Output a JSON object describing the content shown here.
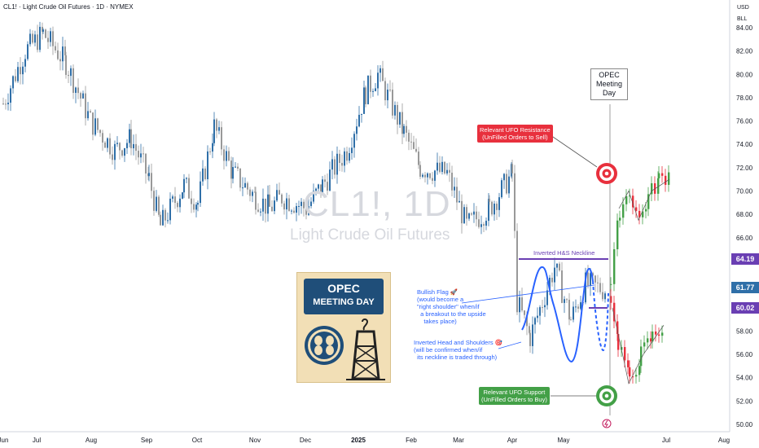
{
  "header": {
    "symbol": "CL1!",
    "title": "Light Crude Oil Futures",
    "interval": "1D",
    "exchange": "NYMEX",
    "full": "CL1! · Light Crude Oil Futures · 1D · NYMEX"
  },
  "axis_top": {
    "currency": "USD",
    "scale": "BLL"
  },
  "watermark": {
    "big": "CL1!, 1D",
    "small": "Light Crude Oil Futures"
  },
  "price_labels": {
    "upper": "64.19",
    "current": "61.77",
    "lower": "60.02"
  },
  "colors": {
    "up": "#2f6fa8",
    "down": "#999999",
    "neckline": "#6a3fb3",
    "resistance": "#e8303d",
    "support": "#43a047",
    "annotation": "#2962ff"
  },
  "annotations": {
    "neckline_label": "Inverted H&S Neckline",
    "opec_day": [
      "OPEC",
      "Meeting",
      "Day"
    ],
    "resistance": [
      "Relevant UFO Resistance",
      "(UnFilled Orders to Sell)"
    ],
    "support": [
      "Relevant UFO Support",
      "(UnFilled Orders to Buy)"
    ],
    "bullish_flag": "Bullish Flag 🚀\n(would become a\n\"right shoulder\" when/if\n  a breakout to the upside\n    takes place)",
    "inverted_hs": "Inverted Head and Shoulders 🎯\n(will be confirmed when/if\n  its neckline is traded through)",
    "poster": [
      "OPEC",
      "MEETING DAY"
    ]
  },
  "chart_data": {
    "type": "candlestick",
    "title": "CL1! · Light Crude Oil Futures · 1D · NYMEX",
    "x_ticks": [
      "Jul",
      "Aug",
      "Sep",
      "Oct",
      "Nov",
      "Dec",
      "2025",
      "Feb",
      "Mar",
      "Apr",
      "May",
      "Jun",
      "Jul",
      "Aug"
    ],
    "y_ticks": [
      50,
      52,
      54,
      56,
      58,
      60,
      62,
      64,
      66,
      68,
      70,
      72,
      74,
      76,
      78,
      80,
      82,
      84
    ],
    "y_tick_labels": [
      "50.00",
      "52.00",
      "54.00",
      "56.00",
      "58.00",
      "60.00",
      "62.00",
      "64.00",
      "66.00",
      "68.00",
      "70.00",
      "72.00",
      "74.00",
      "76.00",
      "78.00",
      "80.00",
      "82.00",
      "84.00"
    ],
    "ylim": [
      49.5,
      85.5
    ],
    "grid": false,
    "close_path": [
      [
        "Jun",
        77.5
      ],
      [
        "Jul",
        82
      ],
      [
        "Jul",
        83.5
      ],
      [
        "Jul",
        81
      ],
      [
        "Aug",
        76
      ],
      [
        "Aug",
        73.5
      ],
      [
        "Aug",
        74.5
      ],
      [
        "Sep",
        71
      ],
      [
        "Sep",
        67
      ],
      [
        "Sep",
        70.5
      ],
      [
        "Oct",
        69
      ],
      [
        "Oct",
        75.5
      ],
      [
        "Oct",
        71.5
      ],
      [
        "Nov",
        69.5
      ],
      [
        "Nov",
        68.5
      ],
      [
        "Nov",
        69.5
      ],
      [
        "Dec",
        68.5
      ],
      [
        "Dec",
        70.5
      ],
      [
        "2025",
        73.5
      ],
      [
        "2025",
        78.5
      ],
      [
        "2025",
        80
      ],
      [
        "Feb",
        75
      ],
      [
        "Feb",
        72
      ],
      [
        "Mar",
        71.5
      ],
      [
        "Mar",
        67
      ],
      [
        "Mar",
        68.5
      ],
      [
        "Apr",
        71.5
      ],
      [
        "Apr",
        60.5
      ],
      [
        "Apr",
        57.5
      ],
      [
        "Apr",
        63.5
      ],
      [
        "May",
        59
      ],
      [
        "May",
        62
      ],
      [
        "May",
        61.5
      ],
      [
        "Jun",
        63
      ],
      [
        "Jun",
        68.5
      ],
      [
        "Jun",
        67.5
      ],
      [
        "Jul",
        68
      ]
    ],
    "horizontal_levels": [
      {
        "name": "Inverted H&S Neckline",
        "value": 64.19
      },
      {
        "name": "Relevant UFO Resistance",
        "value": 72.0
      },
      {
        "name": "Relevant UFO Support",
        "value": 52.5
      }
    ]
  }
}
